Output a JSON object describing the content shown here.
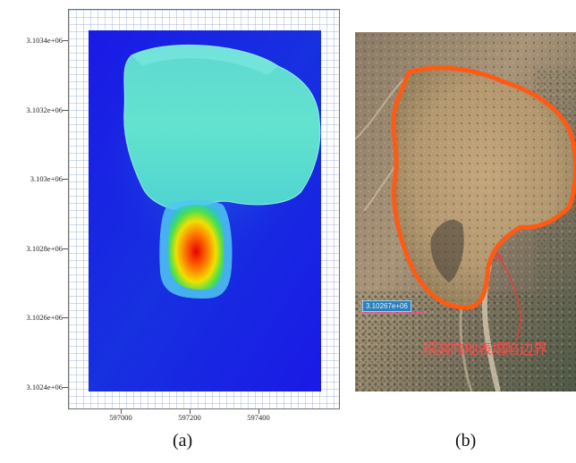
{
  "panel_a": {
    "label": "(a)",
    "y_ticks": [
      "3.1034e+06",
      "3.1032e+06",
      "3.103e+06",
      "3.1028e+06",
      "3.1026e+06",
      "3.1024e+06"
    ],
    "x_ticks": [
      "597000",
      "597200",
      "597400"
    ],
    "colormap_colors": {
      "low": "#1a1ae6",
      "mid": "#5fe0cf",
      "high": "#e80000"
    }
  },
  "panel_b": {
    "label": "(b)",
    "coordinate_tag": "3.10267e+06",
    "annotation": "预测的地表塌陷边界",
    "boundary_color": "#ff5a14",
    "annotation_color": "#ff4a4a"
  }
}
